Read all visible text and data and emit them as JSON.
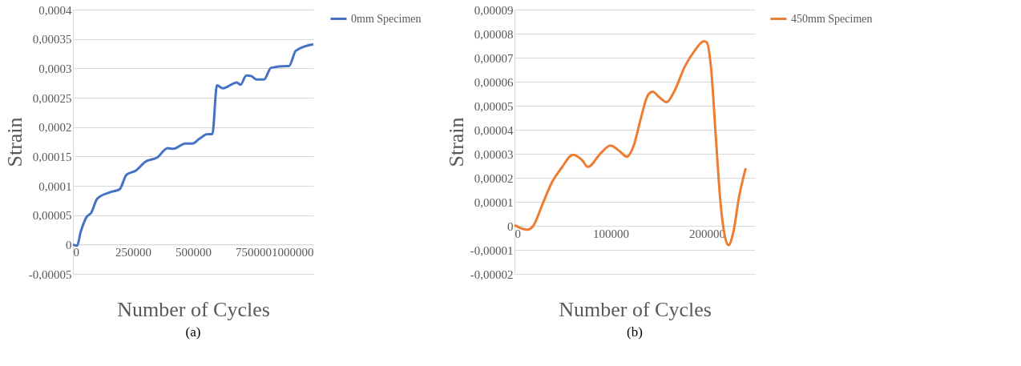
{
  "chart_data": [
    {
      "type": "line",
      "xlabel": "Number of Cycles",
      "ylabel": "Strain",
      "annotations": [
        "(a)"
      ],
      "legend": "right",
      "grid": "y",
      "marker": "none",
      "line_style": "solid",
      "xlim": [
        0,
        1000000
      ],
      "xticks": [
        0,
        250000,
        500000,
        750000,
        1000000
      ],
      "ylim": [
        -5e-05,
        0.0004
      ],
      "yticks": [
        {
          "value": -5e-05,
          "label": "-0,00005"
        },
        0,
        {
          "value": 5e-05,
          "label": "0,00005"
        },
        {
          "value": 0.0001,
          "label": "0,0001"
        },
        {
          "value": 0.00015,
          "label": "0,00015"
        },
        {
          "value": 0.0002,
          "label": "0,0002"
        },
        {
          "value": 0.00025,
          "label": "0,00025"
        },
        {
          "value": 0.0003,
          "label": "0,0003"
        },
        {
          "value": 0.00035,
          "label": "0,00035"
        },
        {
          "value": 0.0004,
          "label": "0,0004"
        }
      ],
      "series": [
        {
          "name": "0mm Specimen",
          "color": "#4472c4",
          "x": [
            0,
            17600,
            32000,
            57000,
            76000,
            101000,
            154000,
            194000,
            223000,
            262000,
            301000,
            350000,
            394000,
            418000,
            467000,
            497000,
            526000,
            560000,
            580000,
            599000,
            624000,
            682000,
            697000,
            721000,
            741000,
            765000,
            795000,
            824000,
            888000,
            899000,
            927000,
            1000000
          ],
          "values": [
            0,
            -2e-06,
            2.1e-05,
            4.7e-05,
            5.4e-05,
            7.8e-05,
            8.9e-05,
            9.4e-05,
            0.000119,
            0.000126,
            0.000141,
            0.000148,
            0.000164,
            0.000163,
            0.000172,
            0.000172,
            0.00018,
            0.000188,
            0.000188,
            0.000271,
            0.000266,
            0.000276,
            0.000272,
            0.000288,
            0.000287,
            0.000281,
            0.000281,
            0.000301,
            0.000304,
            0.000304,
            0.00033,
            0.000341
          ]
        }
      ]
    },
    {
      "type": "line",
      "xlabel": "Number of Cycles",
      "ylabel": "Strain",
      "annotations": [
        "(b)"
      ],
      "legend": "right",
      "grid": "y",
      "marker": "none",
      "line_style": "solid",
      "xlim": [
        0,
        250000
      ],
      "xticks": [
        0,
        100000,
        200000
      ],
      "ylim": [
        -2e-05,
        9e-05
      ],
      "yticks": [
        {
          "value": -2e-05,
          "label": "-0,00002"
        },
        {
          "value": -1e-05,
          "label": "-0,00001"
        },
        0,
        {
          "value": 1e-05,
          "label": "0,00001"
        },
        {
          "value": 2e-05,
          "label": "0,00002"
        },
        {
          "value": 3e-05,
          "label": "0,00003"
        },
        {
          "value": 4e-05,
          "label": "0,00004"
        },
        {
          "value": 5e-05,
          "label": "0,00005"
        },
        {
          "value": 6e-05,
          "label": "0,00006"
        },
        {
          "value": 7e-05,
          "label": "0,00007"
        },
        {
          "value": 8e-05,
          "label": "0,00008"
        },
        {
          "value": 9e-05,
          "label": "0,00009"
        }
      ],
      "series": [
        {
          "name": "450mm Specimen",
          "color": "#ed7d31",
          "x": [
            0,
            13400,
            19500,
            29200,
            38900,
            48700,
            60800,
            70600,
            76200,
            90000,
            99800,
            109500,
            116800,
            124100,
            131400,
            138700,
            143600,
            150900,
            158200,
            165500,
            177600,
            187300,
            197100,
            200000,
            204400,
            209200,
            214100,
            219000,
            222600,
            227500,
            233600,
            240400
          ],
          "values": [
            3e-07,
            -1.6e-06,
            0,
            9.1e-06,
            1.81e-05,
            2.4e-05,
            2.96e-05,
            2.72e-05,
            2.45e-05,
            3.04e-05,
            3.34e-05,
            3.1e-05,
            2.88e-05,
            3.36e-05,
            4.48e-05,
            5.44e-05,
            5.58e-05,
            5.34e-05,
            5.15e-05,
            5.55e-05,
            6.67e-05,
            7.29e-05,
            7.68e-05,
            7.63e-05,
            6.56e-05,
            3.79e-05,
            1.01e-05,
            -4.8e-06,
            -8e-06,
            -2.7e-06,
            1.23e-05,
            2.4e-05
          ]
        }
      ]
    }
  ]
}
